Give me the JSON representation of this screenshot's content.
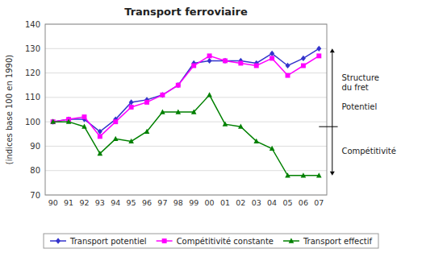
{
  "chart_data": {
    "type": "line",
    "title": "Transport ferroviaire",
    "y_label": "(indices base 100 en 1990)",
    "categories": [
      "90",
      "91",
      "92",
      "93",
      "94",
      "95",
      "96",
      "97",
      "98",
      "99",
      "00",
      "01",
      "02",
      "03",
      "04",
      "05",
      "06",
      "07"
    ],
    "series": [
      {
        "name": "Transport potentiel",
        "color": "#3333CC",
        "marker": "diamond",
        "values": [
          100,
          101,
          101,
          96,
          101,
          108,
          109,
          111,
          115,
          124,
          125,
          125,
          125,
          124,
          128,
          123,
          126,
          130
        ]
      },
      {
        "name": "Compétitivité constante",
        "color": "#FF00FF",
        "marker": "square",
        "values": [
          100,
          101,
          102,
          94,
          100,
          106,
          108,
          111,
          115,
          123,
          127,
          125,
          124,
          123,
          126,
          119,
          123,
          127
        ]
      },
      {
        "name": "Transport effectif",
        "color": "#008000",
        "marker": "triangle",
        "values": [
          100,
          100,
          98,
          87,
          93,
          92,
          96,
          104,
          104,
          104,
          111,
          99,
          98,
          92,
          89,
          78,
          78,
          78
        ]
      }
    ],
    "ylim": [
      70,
      140
    ],
    "yticks": [
      70,
      80,
      90,
      100,
      110,
      120,
      130,
      140
    ],
    "grid": true,
    "legend": "bottom",
    "annotations": {
      "y": [
        130,
        98,
        78
      ],
      "labels": [
        "Structure\ndu fret",
        "Potentiel",
        "Compétitivité"
      ]
    }
  }
}
